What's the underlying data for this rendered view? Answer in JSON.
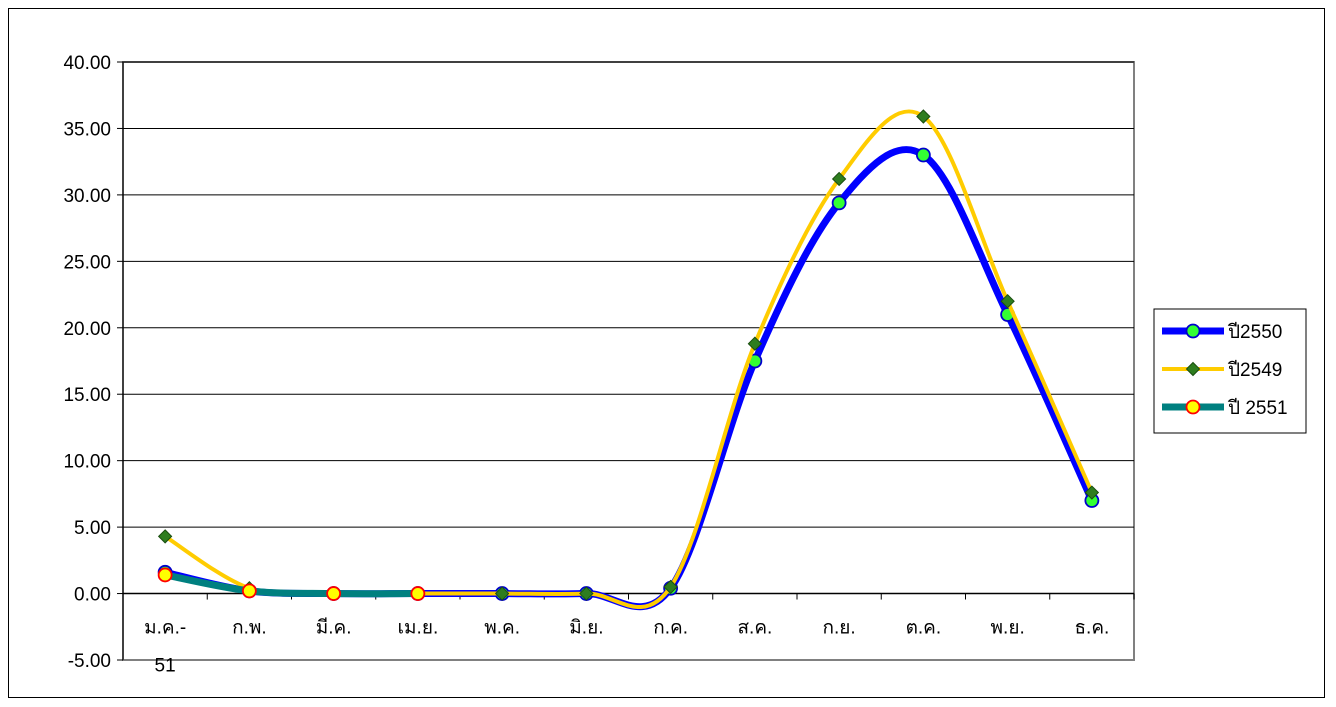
{
  "chart_data": {
    "type": "line",
    "title": "",
    "xlabel": "",
    "ylabel": "",
    "categories": [
      "ม.ค.-51",
      "ก.พ.",
      "มี.ค.",
      "เม.ย.",
      "พ.ค.",
      "มิ.ย.",
      "ก.ค.",
      "ส.ค.",
      "ก.ย.",
      "ต.ค.",
      "พ.ย.",
      "ธ.ค."
    ],
    "category_labels": [
      [
        "ม.ค.-",
        "51"
      ],
      [
        "ก.พ."
      ],
      [
        "มี.ค."
      ],
      [
        "เม.ย."
      ],
      [
        "พ.ค."
      ],
      [
        "มิ.ย."
      ],
      [
        "ก.ค."
      ],
      [
        "ส.ค."
      ],
      [
        "ก.ย."
      ],
      [
        "ต.ค."
      ],
      [
        "พ.ย."
      ],
      [
        "ธ.ค."
      ]
    ],
    "ylim": [
      -5,
      40
    ],
    "yticks": [
      "-5.00",
      "0.00",
      "5.00",
      "10.00",
      "15.00",
      "20.00",
      "25.00",
      "30.00",
      "35.00",
      "40.00"
    ],
    "grid": true,
    "smooth": true,
    "legend_position": "right",
    "series": [
      {
        "name": "ปี2550",
        "line_color": "#0000ff",
        "marker": "circle",
        "marker_fill": "#33ff33",
        "marker_stroke": "#0000cc",
        "values": [
          1.6,
          0.2,
          0.0,
          0.0,
          0.0,
          0.0,
          0.4,
          17.5,
          29.4,
          33.0,
          21.0,
          7.0
        ]
      },
      {
        "name": "ปี2549",
        "line_color": "#ffcc00",
        "marker": "diamond",
        "marker_fill": "#2e7d1f",
        "marker_stroke": "#1a4d10",
        "values": [
          4.3,
          0.4,
          0.0,
          0.0,
          0.0,
          0.0,
          0.5,
          18.8,
          31.2,
          35.9,
          22.0,
          7.6
        ]
      },
      {
        "name": "ปี 2551",
        "line_color": "#008080",
        "marker": "circle",
        "marker_fill": "#ffff00",
        "marker_stroke": "#ff0000",
        "values": [
          1.4,
          0.2,
          0.0,
          0.0,
          null,
          null,
          null,
          null,
          null,
          null,
          null,
          null
        ]
      }
    ]
  }
}
